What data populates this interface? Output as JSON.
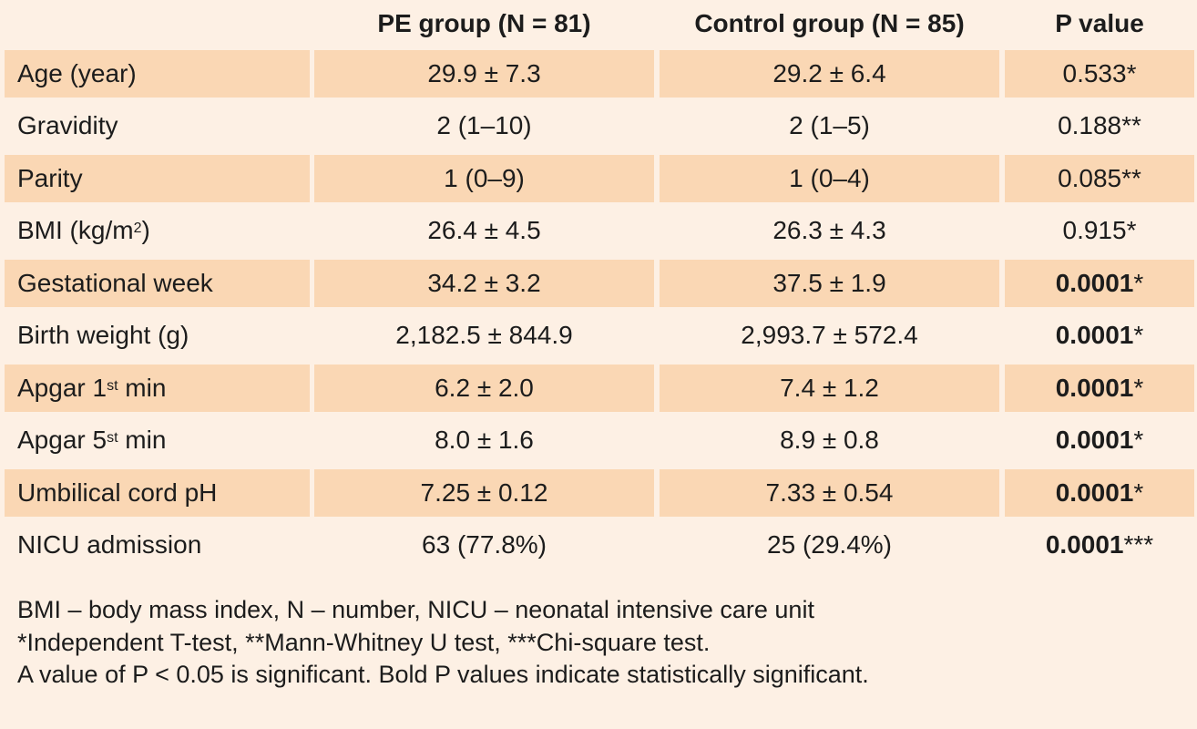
{
  "table": {
    "headers": [
      "",
      "PE group (N = 81)",
      "Control group (N = 85)",
      "P value"
    ],
    "rows": [
      {
        "label": "Age (year)",
        "label_sup": "",
        "label_after": "",
        "pe": "29.9 ± 7.3",
        "control": "29.2 ± 6.4",
        "p_value": "0.533",
        "p_marker": "*",
        "p_bold": false,
        "shaded": true
      },
      {
        "label": "Gravidity",
        "label_sup": "",
        "label_after": "",
        "pe": "2 (1–10)",
        "control": "2 (1–5)",
        "p_value": "0.188",
        "p_marker": "**",
        "p_bold": false,
        "shaded": false
      },
      {
        "label": "Parity",
        "label_sup": "",
        "label_after": "",
        "pe": "1 (0–9)",
        "control": "1 (0–4)",
        "p_value": "0.085",
        "p_marker": "**",
        "p_bold": false,
        "shaded": true
      },
      {
        "label": "BMI (kg/m",
        "label_sup": "2",
        "label_after": ")",
        "pe": "26.4 ± 4.5",
        "control": "26.3 ± 4.3",
        "p_value": "0.915",
        "p_marker": "*",
        "p_bold": false,
        "shaded": false
      },
      {
        "label": "Gestational week",
        "label_sup": "",
        "label_after": "",
        "pe": "34.2 ± 3.2",
        "control": "37.5 ± 1.9",
        "p_value": "0.0001",
        "p_marker": "*",
        "p_bold": true,
        "shaded": true
      },
      {
        "label": "Birth weight (g)",
        "label_sup": "",
        "label_after": "",
        "pe": "2,182.5 ± 844.9",
        "control": "2,993.7 ± 572.4",
        "p_value": "0.0001",
        "p_marker": "*",
        "p_bold": true,
        "shaded": false
      },
      {
        "label": "Apgar 1",
        "label_sup": "st",
        "label_after": " min",
        "pe": "6.2 ± 2.0",
        "control": "7.4 ± 1.2",
        "p_value": "0.0001",
        "p_marker": "*",
        "p_bold": true,
        "shaded": true
      },
      {
        "label": "Apgar 5",
        "label_sup": "st",
        "label_after": " min",
        "pe": "8.0 ± 1.6",
        "control": "8.9 ± 0.8",
        "p_value": "0.0001",
        "p_marker": "*",
        "p_bold": true,
        "shaded": false
      },
      {
        "label": "Umbilical cord pH",
        "label_sup": "",
        "label_after": "",
        "pe": "7.25 ± 0.12",
        "control": "7.33 ± 0.54",
        "p_value": "0.0001",
        "p_marker": "*",
        "p_bold": true,
        "shaded": true
      },
      {
        "label": "NICU admission",
        "label_sup": "",
        "label_after": "",
        "pe": "63 (77.8%)",
        "control": "25 (29.4%)",
        "p_value": "0.0001",
        "p_marker": "***",
        "p_bold": true,
        "shaded": false
      }
    ]
  },
  "notes": [
    "BMI – body mass index, N – number, NICU – neonatal intensive care unit",
    "*Independent T-test, **Mann-Whitney U test, ***Chi-square test.",
    "A value of P < 0.05 is significant. Bold P values indicate statistically significant."
  ],
  "colors": {
    "background": "#fdf0e4",
    "shaded_row": "#fad7b4",
    "text": "#1c1c1c"
  }
}
